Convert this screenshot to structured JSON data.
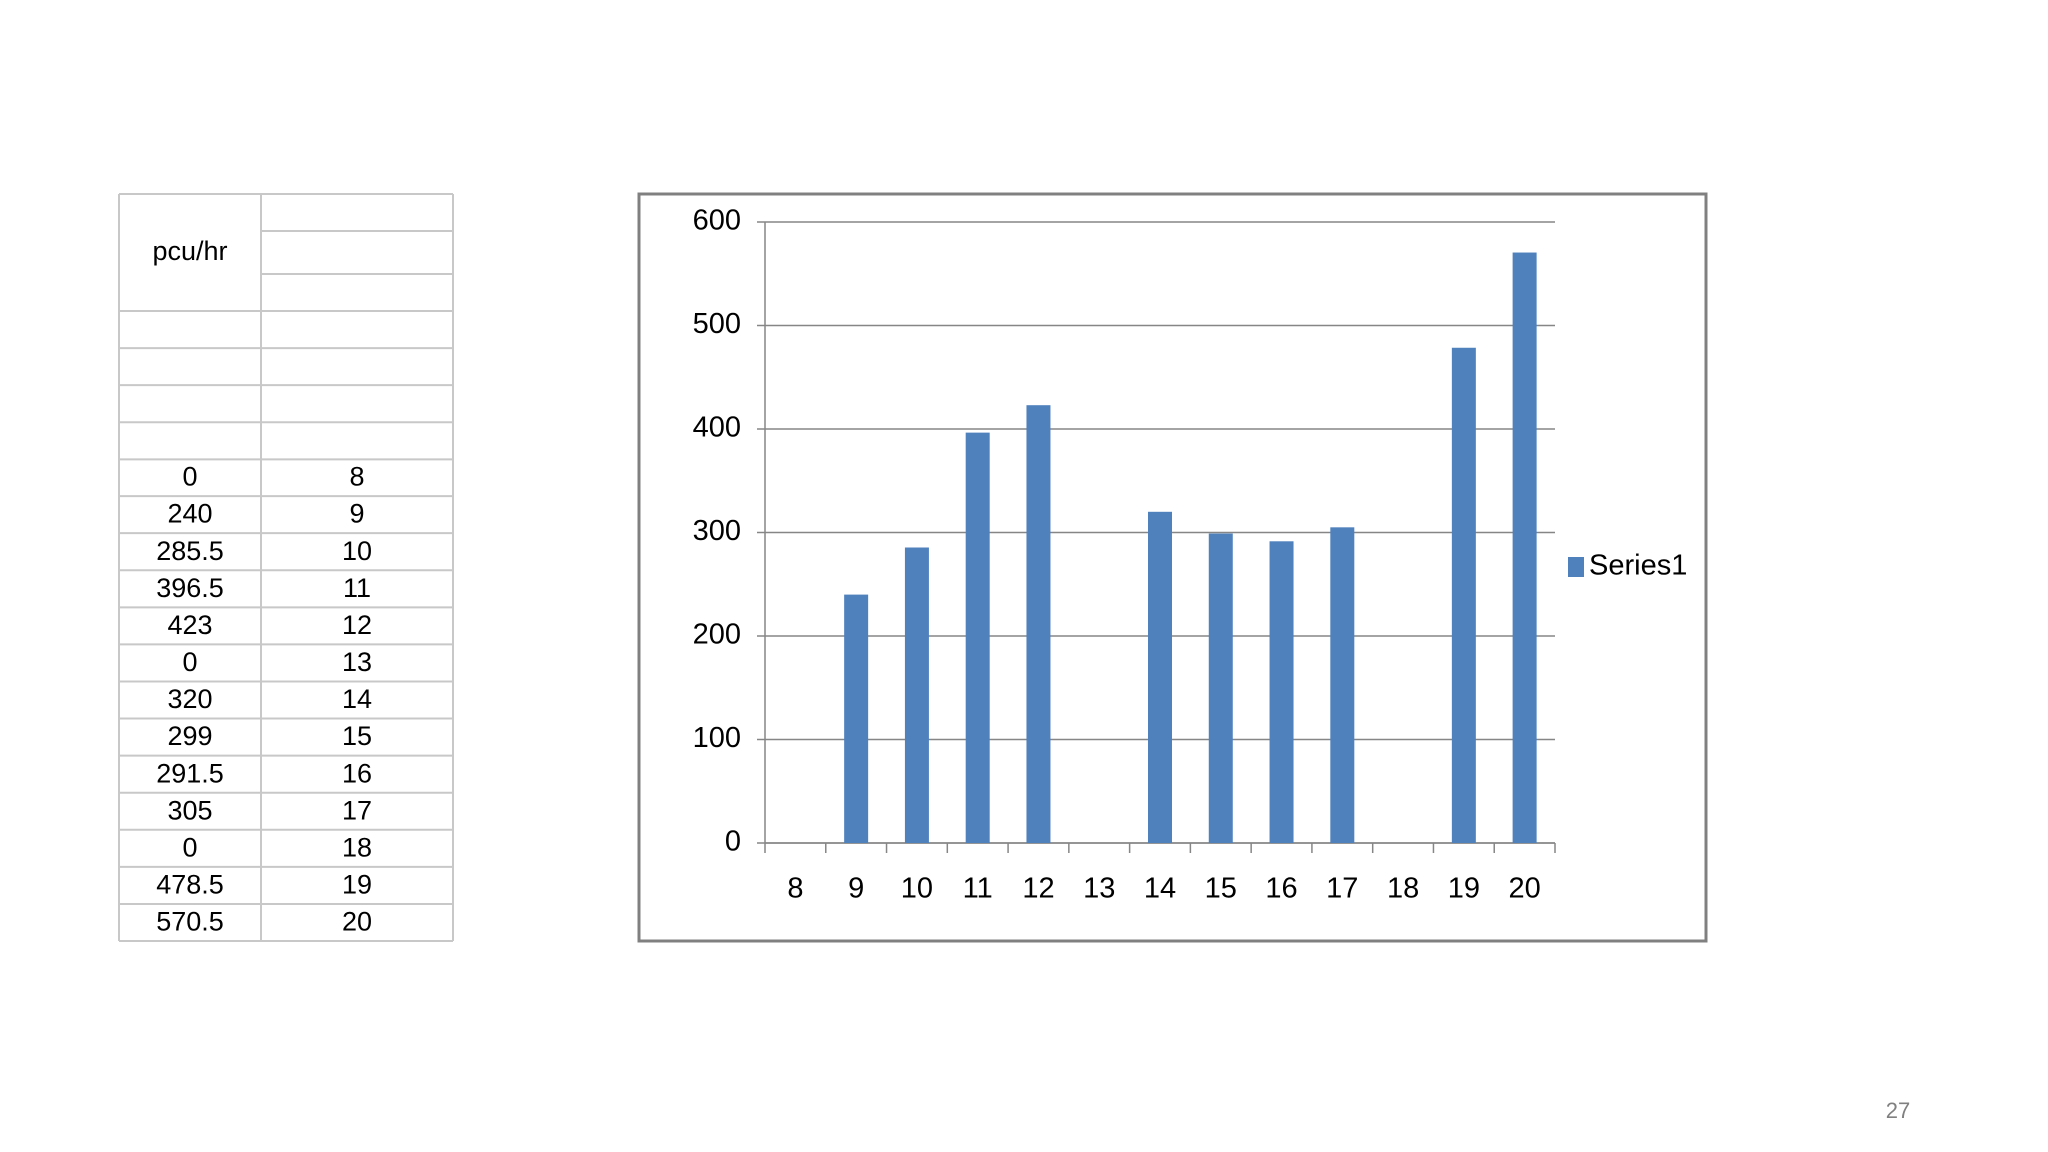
{
  "table": {
    "header": "pcu/hr",
    "rows": [
      [
        0,
        8
      ],
      [
        240,
        9
      ],
      [
        285.5,
        10
      ],
      [
        396.5,
        11
      ],
      [
        423,
        12
      ],
      [
        0,
        13
      ],
      [
        320,
        14
      ],
      [
        299,
        15
      ],
      [
        291.5,
        16
      ],
      [
        305,
        17
      ],
      [
        0,
        18
      ],
      [
        478.5,
        19
      ],
      [
        570.5,
        20
      ]
    ]
  },
  "chart_data": {
    "type": "bar",
    "categories": [
      "8",
      "9",
      "10",
      "11",
      "12",
      "13",
      "14",
      "15",
      "16",
      "17",
      "18",
      "19",
      "20"
    ],
    "series": [
      {
        "name": "Series1",
        "color": "#4f81bd",
        "values": [
          0,
          240,
          285.5,
          396.5,
          423,
          0,
          320,
          299,
          291.5,
          305,
          0,
          478.5,
          570.5
        ]
      }
    ],
    "ylim": [
      0,
      600
    ],
    "yticks": [
      0,
      100,
      200,
      300,
      400,
      500,
      600
    ],
    "grid": true,
    "legend": "right"
  },
  "page_number": "27"
}
